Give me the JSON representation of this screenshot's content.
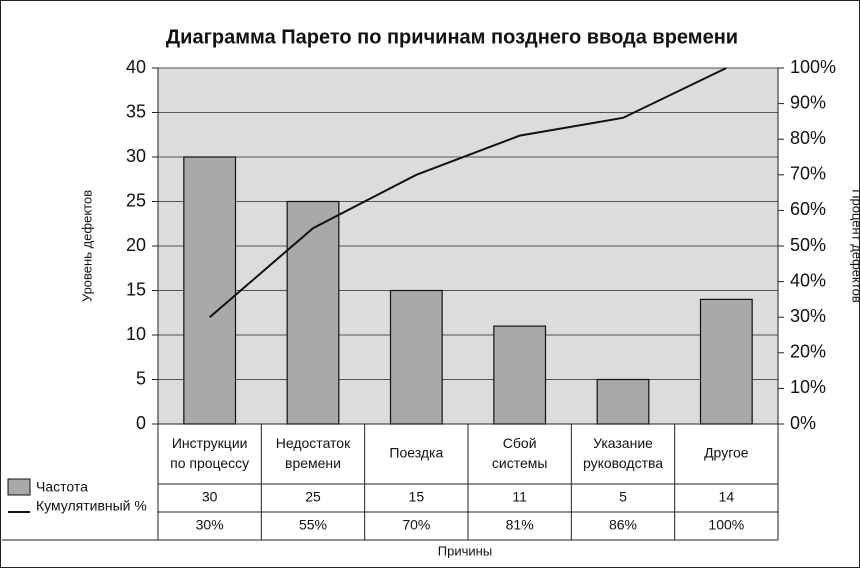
{
  "chart_data": {
    "type": "pareto",
    "title": "Диаграмма Парето по причинам позднего ввода времени",
    "x_label": "Причины",
    "y_label": "Уровень дефектов",
    "y2_label": "Процент дефектов",
    "categories": [
      "Инструкции по процессу",
      "Недостаток времени",
      "Поездка",
      "Сбой системы",
      "Указание руководства",
      "Другое"
    ],
    "series": [
      {
        "name": "Частота",
        "type": "bar",
        "color": "#a9a9a9",
        "values": [
          30,
          25,
          15,
          11,
          5,
          14
        ]
      },
      {
        "name": "Кумулятивный %",
        "type": "line",
        "color": "#111111",
        "axis": "y2",
        "values": [
          30,
          55,
          70,
          81,
          86,
          100
        ],
        "value_labels": [
          "30%",
          "55%",
          "70%",
          "81%",
          "86%",
          "100%"
        ]
      }
    ],
    "ylim": [
      0,
      40
    ],
    "yticks": [
      0,
      5,
      10,
      15,
      20,
      25,
      30,
      35,
      40
    ],
    "y2lim": [
      0,
      100
    ],
    "y2ticks": [
      {
        "value": 0,
        "label": "0%"
      },
      {
        "value": 10,
        "label": "10%"
      },
      {
        "value": 20,
        "label": "20%"
      },
      {
        "value": 30,
        "label": "30%"
      },
      {
        "value": 40,
        "label": "40%"
      },
      {
        "value": 50,
        "label": "50%"
      },
      {
        "value": 60,
        "label": "60%"
      },
      {
        "value": 70,
        "label": "70%"
      },
      {
        "value": 80,
        "label": "80%"
      },
      {
        "value": 90,
        "label": "90%"
      },
      {
        "value": 100,
        "label": "100%"
      }
    ],
    "grid": true
  }
}
